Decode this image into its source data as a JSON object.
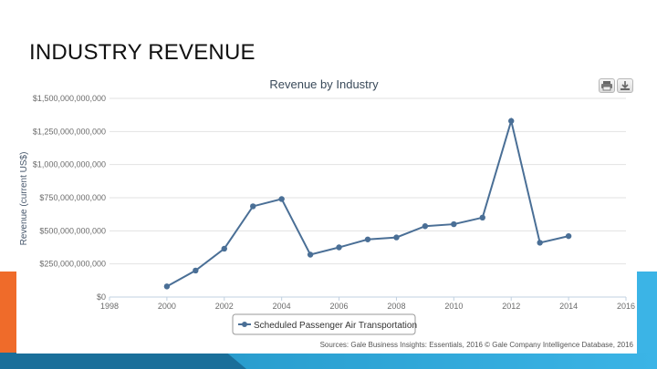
{
  "slide": {
    "title": "INDUSTRY REVENUE"
  },
  "toolbar": {
    "print_icon": "print-icon",
    "download_icon": "download-icon"
  },
  "colors": {
    "series": "#4a6f96",
    "grid": "#e2e2e2",
    "orange": "#ef6b2a",
    "blue": "#3bb4e6"
  },
  "chart_data": {
    "type": "line",
    "title": "Revenue by Industry",
    "ylabel": "Revenue (current US$)",
    "xlabel": "",
    "xlim": [
      1998,
      2016
    ],
    "ylim": [
      0,
      1500000000000
    ],
    "x_ticks": [
      1998,
      2000,
      2002,
      2004,
      2006,
      2008,
      2010,
      2012,
      2014,
      2016
    ],
    "x_tick_labels": [
      "1998",
      "2000",
      "2002",
      "2004",
      "2006",
      "2008",
      "2010",
      "2012",
      "2014",
      "2016"
    ],
    "y_ticks": [
      0,
      250000000000,
      500000000000,
      750000000000,
      1000000000000,
      1250000000000,
      1500000000000
    ],
    "y_tick_labels": [
      "$0",
      "$250,000,000,000",
      "$500,000,000,000",
      "$750,000,000,000",
      "$1,000,000,000,000",
      "$1,250,000,000,000",
      "$1,500,000,000,000"
    ],
    "grid": true,
    "legend_position": "bottom-center",
    "series": [
      {
        "name": "Scheduled Passenger Air Transportation",
        "x": [
          2000,
          2001,
          2002,
          2003,
          2004,
          2005,
          2006,
          2007,
          2008,
          2009,
          2010,
          2011,
          2012,
          2013,
          2014
        ],
        "values": [
          80000000000,
          200000000000,
          365000000000,
          685000000000,
          740000000000,
          320000000000,
          375000000000,
          435000000000,
          450000000000,
          535000000000,
          550000000000,
          600000000000,
          1330000000000,
          410000000000,
          460000000000
        ]
      }
    ],
    "credits": "Sources: Gale Business Insights: Essentials, 2016 © Gale Company Intelligence Database, 2016"
  }
}
